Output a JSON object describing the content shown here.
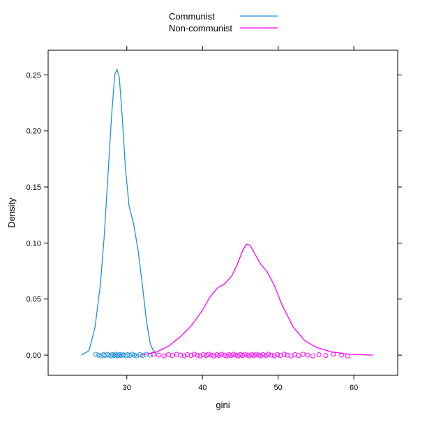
{
  "chart_data": {
    "type": "line",
    "title": "",
    "xlabel": "gini",
    "ylabel": "Density",
    "xlim": [
      19.6,
      65.8
    ],
    "ylim": [
      -0.018,
      0.272
    ],
    "x_ticks": [
      30,
      40,
      50,
      60
    ],
    "y_ticks": [
      0.0,
      0.05,
      0.1,
      0.15,
      0.2,
      0.25
    ],
    "x_tick_labels": [
      "30",
      "40",
      "50",
      "60"
    ],
    "y_tick_labels": [
      "0.00",
      "0.05",
      "0.10",
      "0.15",
      "0.20",
      "0.25"
    ],
    "grid": false,
    "legend_position": "top-center",
    "series": [
      {
        "name": "Communist",
        "color": "#1f8fe0",
        "x": [
          24.0,
          25.0,
          25.8,
          26.5,
          27.0,
          27.5,
          28.0,
          28.4,
          28.7,
          29.0,
          29.4,
          29.8,
          30.3,
          30.9,
          31.5,
          32.1,
          32.6,
          33.1,
          33.5,
          33.9
        ],
        "y": [
          0.0,
          0.004,
          0.025,
          0.063,
          0.105,
          0.16,
          0.215,
          0.25,
          0.255,
          0.248,
          0.212,
          0.168,
          0.133,
          0.117,
          0.093,
          0.06,
          0.03,
          0.01,
          0.004,
          0.002
        ],
        "rug": [
          25.9,
          26.3,
          26.6,
          26.9,
          27.1,
          27.4,
          27.6,
          27.9,
          28.1,
          28.3,
          28.5,
          28.7,
          28.8,
          29.0,
          29.2,
          29.4,
          29.6,
          29.9,
          30.1,
          30.4,
          30.7,
          31.0,
          31.3,
          31.7,
          32.1,
          32.6,
          33.1
        ]
      },
      {
        "name": "Non-communist",
        "color": "#ff00ff",
        "x": [
          32.0,
          34.0,
          35.5,
          37.0,
          38.5,
          40.0,
          41.0,
          42.0,
          43.0,
          43.9,
          44.6,
          45.3,
          45.8,
          46.3,
          46.7,
          47.2,
          47.7,
          48.5,
          49.5,
          50.5,
          52.0,
          53.5,
          55.0,
          57.0,
          59.0,
          60.5,
          61.5,
          62.5
        ],
        "y": [
          0.0,
          0.003,
          0.008,
          0.016,
          0.026,
          0.04,
          0.052,
          0.06,
          0.064,
          0.071,
          0.081,
          0.093,
          0.099,
          0.098,
          0.093,
          0.087,
          0.081,
          0.075,
          0.062,
          0.045,
          0.025,
          0.013,
          0.007,
          0.003,
          0.001,
          0.0005,
          0.0002,
          0.0
        ],
        "rug": [
          33.5,
          34.2,
          34.9,
          35.5,
          36.0,
          36.6,
          37.1,
          37.6,
          38.0,
          38.5,
          38.9,
          39.3,
          39.7,
          40.1,
          40.5,
          40.8,
          41.2,
          41.5,
          41.9,
          42.2,
          42.5,
          42.9,
          43.2,
          43.5,
          43.8,
          44.1,
          44.4,
          44.7,
          45.0,
          45.3,
          45.6,
          45.9,
          46.2,
          46.5,
          46.8,
          47.1,
          47.4,
          47.7,
          48.0,
          48.4,
          48.7,
          49.1,
          49.5,
          49.9,
          50.3,
          50.8,
          51.2,
          51.7,
          52.2,
          52.7,
          53.3,
          53.9,
          54.6,
          55.4,
          56.3,
          57.3,
          58.4,
          59.2
        ]
      }
    ]
  }
}
